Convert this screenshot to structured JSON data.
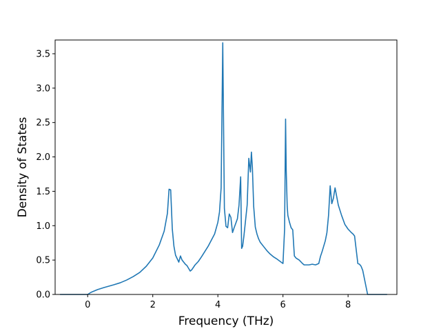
{
  "chart_data": {
    "type": "line",
    "xlabel": "Frequency (THz)",
    "ylabel": "Density of States",
    "xlim": [
      -1.0,
      9.5
    ],
    "ylim": [
      0.0,
      3.7
    ],
    "xticks": [
      0,
      2,
      4,
      6,
      8
    ],
    "yticks": [
      0.0,
      0.5,
      1.0,
      1.5,
      2.0,
      2.5,
      3.0,
      3.5
    ],
    "xtick_labels": [
      "0",
      "2",
      "4",
      "6",
      "8"
    ],
    "ytick_labels": [
      "0.0",
      "0.5",
      "1.0",
      "1.5",
      "2.0",
      "2.5",
      "3.0",
      "3.5"
    ],
    "grid": false,
    "line_color": "#1f77b4",
    "series": [
      {
        "x": [
          -0.85,
          -0.5,
          -0.2,
          -0.05,
          0.0,
          0.1,
          0.3,
          0.5,
          0.8,
          1.0,
          1.2,
          1.4,
          1.6,
          1.8,
          2.0,
          2.2,
          2.35,
          2.45,
          2.5,
          2.55,
          2.6,
          2.65,
          2.7,
          2.8,
          2.85,
          2.9,
          3.0,
          3.05,
          3.1,
          3.15,
          3.2,
          3.3,
          3.4,
          3.5,
          3.7,
          3.9,
          4.0,
          4.05,
          4.1,
          4.15,
          4.2,
          4.25,
          4.3,
          4.35,
          4.4,
          4.45,
          4.5,
          4.6,
          4.65,
          4.7,
          4.73,
          4.76,
          4.8,
          4.9,
          4.95,
          5.0,
          5.03,
          5.06,
          5.1,
          5.15,
          5.2,
          5.25,
          5.3,
          5.4,
          5.5,
          5.6,
          5.7,
          5.8,
          6.0,
          6.05,
          6.08,
          6.1,
          6.13,
          6.15,
          6.2,
          6.25,
          6.3,
          6.35,
          6.4,
          6.5,
          6.6,
          6.65,
          6.7,
          6.8,
          6.9,
          7.0,
          7.1,
          7.15,
          7.2,
          7.3,
          7.35,
          7.4,
          7.45,
          7.5,
          7.55,
          7.6,
          7.7,
          7.8,
          7.9,
          8.0,
          8.1,
          8.15,
          8.2,
          8.3,
          8.35,
          8.4,
          8.45,
          8.6,
          8.8,
          9.0,
          9.2
        ],
        "y": [
          0.0,
          0.0,
          0.0,
          0.0,
          0.0,
          0.03,
          0.07,
          0.1,
          0.14,
          0.17,
          0.21,
          0.26,
          0.32,
          0.41,
          0.53,
          0.72,
          0.92,
          1.18,
          1.53,
          1.52,
          0.95,
          0.7,
          0.57,
          0.47,
          0.56,
          0.5,
          0.44,
          0.42,
          0.38,
          0.34,
          0.36,
          0.43,
          0.48,
          0.55,
          0.7,
          0.88,
          1.05,
          1.2,
          1.55,
          3.66,
          1.25,
          0.99,
          0.97,
          1.17,
          1.12,
          0.9,
          0.97,
          1.1,
          1.3,
          1.71,
          0.67,
          0.7,
          0.85,
          1.3,
          1.98,
          1.78,
          2.07,
          1.85,
          1.28,
          0.98,
          0.88,
          0.81,
          0.76,
          0.7,
          0.64,
          0.59,
          0.55,
          0.52,
          0.45,
          0.95,
          2.55,
          1.8,
          1.28,
          1.15,
          1.05,
          0.97,
          0.94,
          0.56,
          0.53,
          0.5,
          0.45,
          0.43,
          0.43,
          0.43,
          0.44,
          0.43,
          0.45,
          0.55,
          0.62,
          0.78,
          0.9,
          1.15,
          1.58,
          1.32,
          1.4,
          1.55,
          1.3,
          1.15,
          1.02,
          0.95,
          0.9,
          0.88,
          0.85,
          0.45,
          0.44,
          0.41,
          0.35,
          0.0,
          0.0,
          0.0,
          0.0
        ]
      }
    ]
  }
}
